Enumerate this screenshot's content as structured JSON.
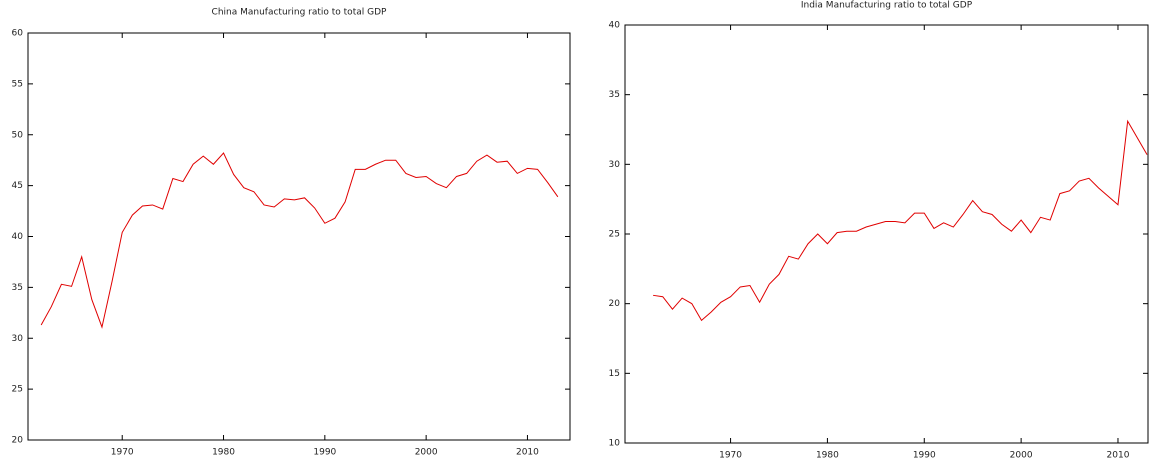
{
  "chart_data": [
    {
      "type": "line",
      "title": "China Manufacturing ratio to total GDP",
      "x": [
        1962,
        1963,
        1964,
        1965,
        1966,
        1967,
        1968,
        1969,
        1970,
        1971,
        1972,
        1973,
        1974,
        1975,
        1976,
        1977,
        1978,
        1979,
        1980,
        1981,
        1982,
        1983,
        1984,
        1985,
        1986,
        1987,
        1988,
        1989,
        1990,
        1991,
        1992,
        1993,
        1994,
        1995,
        1996,
        1997,
        1998,
        1999,
        2000,
        2001,
        2002,
        2003,
        2004,
        2005,
        2006,
        2007,
        2008,
        2009,
        2010,
        2011,
        2012,
        2013
      ],
      "series": [
        {
          "color": "#e00000",
          "values": [
            31.3,
            33.1,
            35.3,
            35.1,
            38.0,
            33.8,
            31.1,
            35.6,
            40.4,
            42.1,
            43.0,
            43.1,
            42.7,
            45.7,
            45.4,
            47.1,
            47.9,
            47.1,
            48.2,
            46.1,
            44.8,
            44.4,
            43.1,
            42.9,
            43.7,
            43.6,
            43.8,
            42.8,
            41.3,
            41.8,
            43.4,
            46.6,
            46.6,
            47.1,
            47.5,
            47.5,
            46.2,
            45.8,
            45.9,
            45.2,
            44.8,
            45.9,
            46.2,
            47.4,
            48.0,
            47.3,
            47.4,
            46.2,
            46.7,
            46.6,
            45.3,
            43.9
          ]
        }
      ],
      "xlim": [
        1960.7,
        2014.2
      ],
      "xticks": [
        1970,
        1980,
        1990,
        2000,
        2010
      ],
      "ylim": [
        20,
        60
      ],
      "yticks": [
        20,
        25,
        30,
        35,
        40,
        45,
        50,
        55,
        60
      ]
    },
    {
      "type": "line",
      "title": "India Manufacturing ratio to total GDP",
      "x": [
        1962,
        1963,
        1964,
        1965,
        1966,
        1967,
        1968,
        1969,
        1970,
        1971,
        1972,
        1973,
        1974,
        1975,
        1976,
        1977,
        1978,
        1979,
        1980,
        1981,
        1982,
        1983,
        1984,
        1985,
        1986,
        1987,
        1988,
        1989,
        1990,
        1991,
        1992,
        1993,
        1994,
        1995,
        1996,
        1997,
        1998,
        1999,
        2000,
        2001,
        2002,
        2003,
        2004,
        2005,
        2006,
        2007,
        2008,
        2009,
        2010,
        2011,
        2012,
        2013
      ],
      "series": [
        {
          "color": "#e00000",
          "values": [
            20.6,
            20.5,
            19.6,
            20.4,
            20.0,
            18.8,
            19.4,
            20.1,
            20.5,
            21.2,
            21.3,
            20.1,
            21.4,
            22.1,
            23.4,
            23.2,
            24.3,
            25.0,
            24.3,
            25.1,
            25.2,
            25.2,
            25.5,
            25.7,
            25.9,
            25.9,
            25.8,
            26.5,
            26.5,
            25.4,
            25.8,
            25.5,
            26.4,
            27.4,
            26.6,
            26.4,
            25.7,
            25.2,
            26.0,
            25.1,
            26.2,
            26.0,
            27.9,
            28.1,
            28.8,
            29.0,
            28.3,
            27.7,
            27.1,
            33.1,
            31.9,
            30.7
          ]
        }
      ],
      "xlim": [
        1959.1,
        2013.1
      ],
      "xticks": [
        1970,
        1980,
        1990,
        2000,
        2010
      ],
      "ylim": [
        10,
        40
      ],
      "yticks": [
        10,
        15,
        20,
        25,
        30,
        35,
        40
      ]
    }
  ]
}
